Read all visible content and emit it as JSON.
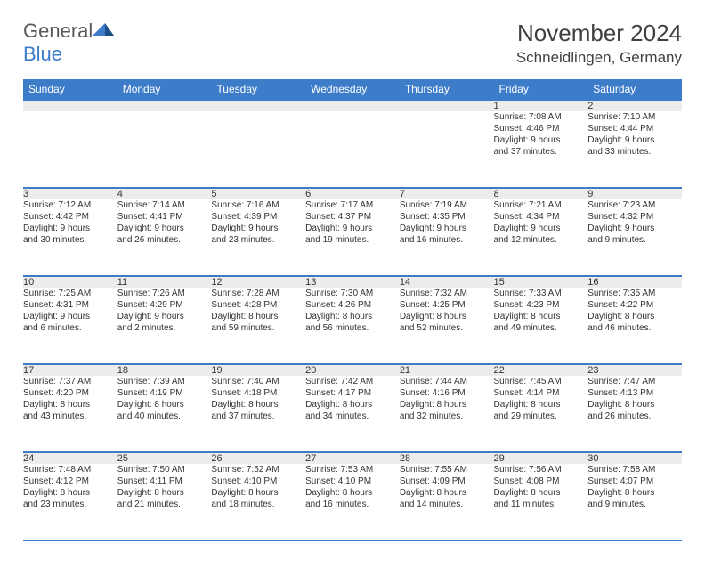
{
  "logo": {
    "text1": "General",
    "text2": "Blue"
  },
  "title": "November 2024",
  "location": "Schneidlingen, Germany",
  "colors": {
    "header_bg": "#3d7cc9",
    "header_text": "#ffffff",
    "dayrow_bg": "#ececec",
    "border": "#3d7cc9",
    "body_text": "#333333",
    "title_text": "#404040",
    "logo_gray": "#5a5a5a",
    "logo_blue": "#3d7cc9"
  },
  "fonts": {
    "title_size": 26,
    "location_size": 17,
    "dayheader_size": 12,
    "daynum_size": 11,
    "cell_size": 10
  },
  "day_headers": [
    "Sunday",
    "Monday",
    "Tuesday",
    "Wednesday",
    "Thursday",
    "Friday",
    "Saturday"
  ],
  "weeks": [
    {
      "nums": [
        "",
        "",
        "",
        "",
        "",
        "1",
        "2"
      ],
      "cells": [
        {
          "sunrise": "",
          "sunset": "",
          "daylight1": "",
          "daylight2": ""
        },
        {
          "sunrise": "",
          "sunset": "",
          "daylight1": "",
          "daylight2": ""
        },
        {
          "sunrise": "",
          "sunset": "",
          "daylight1": "",
          "daylight2": ""
        },
        {
          "sunrise": "",
          "sunset": "",
          "daylight1": "",
          "daylight2": ""
        },
        {
          "sunrise": "",
          "sunset": "",
          "daylight1": "",
          "daylight2": ""
        },
        {
          "sunrise": "Sunrise: 7:08 AM",
          "sunset": "Sunset: 4:46 PM",
          "daylight1": "Daylight: 9 hours",
          "daylight2": "and 37 minutes."
        },
        {
          "sunrise": "Sunrise: 7:10 AM",
          "sunset": "Sunset: 4:44 PM",
          "daylight1": "Daylight: 9 hours",
          "daylight2": "and 33 minutes."
        }
      ]
    },
    {
      "nums": [
        "3",
        "4",
        "5",
        "6",
        "7",
        "8",
        "9"
      ],
      "cells": [
        {
          "sunrise": "Sunrise: 7:12 AM",
          "sunset": "Sunset: 4:42 PM",
          "daylight1": "Daylight: 9 hours",
          "daylight2": "and 30 minutes."
        },
        {
          "sunrise": "Sunrise: 7:14 AM",
          "sunset": "Sunset: 4:41 PM",
          "daylight1": "Daylight: 9 hours",
          "daylight2": "and 26 minutes."
        },
        {
          "sunrise": "Sunrise: 7:16 AM",
          "sunset": "Sunset: 4:39 PM",
          "daylight1": "Daylight: 9 hours",
          "daylight2": "and 23 minutes."
        },
        {
          "sunrise": "Sunrise: 7:17 AM",
          "sunset": "Sunset: 4:37 PM",
          "daylight1": "Daylight: 9 hours",
          "daylight2": "and 19 minutes."
        },
        {
          "sunrise": "Sunrise: 7:19 AM",
          "sunset": "Sunset: 4:35 PM",
          "daylight1": "Daylight: 9 hours",
          "daylight2": "and 16 minutes."
        },
        {
          "sunrise": "Sunrise: 7:21 AM",
          "sunset": "Sunset: 4:34 PM",
          "daylight1": "Daylight: 9 hours",
          "daylight2": "and 12 minutes."
        },
        {
          "sunrise": "Sunrise: 7:23 AM",
          "sunset": "Sunset: 4:32 PM",
          "daylight1": "Daylight: 9 hours",
          "daylight2": "and 9 minutes."
        }
      ]
    },
    {
      "nums": [
        "10",
        "11",
        "12",
        "13",
        "14",
        "15",
        "16"
      ],
      "cells": [
        {
          "sunrise": "Sunrise: 7:25 AM",
          "sunset": "Sunset: 4:31 PM",
          "daylight1": "Daylight: 9 hours",
          "daylight2": "and 6 minutes."
        },
        {
          "sunrise": "Sunrise: 7:26 AM",
          "sunset": "Sunset: 4:29 PM",
          "daylight1": "Daylight: 9 hours",
          "daylight2": "and 2 minutes."
        },
        {
          "sunrise": "Sunrise: 7:28 AM",
          "sunset": "Sunset: 4:28 PM",
          "daylight1": "Daylight: 8 hours",
          "daylight2": "and 59 minutes."
        },
        {
          "sunrise": "Sunrise: 7:30 AM",
          "sunset": "Sunset: 4:26 PM",
          "daylight1": "Daylight: 8 hours",
          "daylight2": "and 56 minutes."
        },
        {
          "sunrise": "Sunrise: 7:32 AM",
          "sunset": "Sunset: 4:25 PM",
          "daylight1": "Daylight: 8 hours",
          "daylight2": "and 52 minutes."
        },
        {
          "sunrise": "Sunrise: 7:33 AM",
          "sunset": "Sunset: 4:23 PM",
          "daylight1": "Daylight: 8 hours",
          "daylight2": "and 49 minutes."
        },
        {
          "sunrise": "Sunrise: 7:35 AM",
          "sunset": "Sunset: 4:22 PM",
          "daylight1": "Daylight: 8 hours",
          "daylight2": "and 46 minutes."
        }
      ]
    },
    {
      "nums": [
        "17",
        "18",
        "19",
        "20",
        "21",
        "22",
        "23"
      ],
      "cells": [
        {
          "sunrise": "Sunrise: 7:37 AM",
          "sunset": "Sunset: 4:20 PM",
          "daylight1": "Daylight: 8 hours",
          "daylight2": "and 43 minutes."
        },
        {
          "sunrise": "Sunrise: 7:39 AM",
          "sunset": "Sunset: 4:19 PM",
          "daylight1": "Daylight: 8 hours",
          "daylight2": "and 40 minutes."
        },
        {
          "sunrise": "Sunrise: 7:40 AM",
          "sunset": "Sunset: 4:18 PM",
          "daylight1": "Daylight: 8 hours",
          "daylight2": "and 37 minutes."
        },
        {
          "sunrise": "Sunrise: 7:42 AM",
          "sunset": "Sunset: 4:17 PM",
          "daylight1": "Daylight: 8 hours",
          "daylight2": "and 34 minutes."
        },
        {
          "sunrise": "Sunrise: 7:44 AM",
          "sunset": "Sunset: 4:16 PM",
          "daylight1": "Daylight: 8 hours",
          "daylight2": "and 32 minutes."
        },
        {
          "sunrise": "Sunrise: 7:45 AM",
          "sunset": "Sunset: 4:14 PM",
          "daylight1": "Daylight: 8 hours",
          "daylight2": "and 29 minutes."
        },
        {
          "sunrise": "Sunrise: 7:47 AM",
          "sunset": "Sunset: 4:13 PM",
          "daylight1": "Daylight: 8 hours",
          "daylight2": "and 26 minutes."
        }
      ]
    },
    {
      "nums": [
        "24",
        "25",
        "26",
        "27",
        "28",
        "29",
        "30"
      ],
      "cells": [
        {
          "sunrise": "Sunrise: 7:48 AM",
          "sunset": "Sunset: 4:12 PM",
          "daylight1": "Daylight: 8 hours",
          "daylight2": "and 23 minutes."
        },
        {
          "sunrise": "Sunrise: 7:50 AM",
          "sunset": "Sunset: 4:11 PM",
          "daylight1": "Daylight: 8 hours",
          "daylight2": "and 21 minutes."
        },
        {
          "sunrise": "Sunrise: 7:52 AM",
          "sunset": "Sunset: 4:10 PM",
          "daylight1": "Daylight: 8 hours",
          "daylight2": "and 18 minutes."
        },
        {
          "sunrise": "Sunrise: 7:53 AM",
          "sunset": "Sunset: 4:10 PM",
          "daylight1": "Daylight: 8 hours",
          "daylight2": "and 16 minutes."
        },
        {
          "sunrise": "Sunrise: 7:55 AM",
          "sunset": "Sunset: 4:09 PM",
          "daylight1": "Daylight: 8 hours",
          "daylight2": "and 14 minutes."
        },
        {
          "sunrise": "Sunrise: 7:56 AM",
          "sunset": "Sunset: 4:08 PM",
          "daylight1": "Daylight: 8 hours",
          "daylight2": "and 11 minutes."
        },
        {
          "sunrise": "Sunrise: 7:58 AM",
          "sunset": "Sunset: 4:07 PM",
          "daylight1": "Daylight: 8 hours",
          "daylight2": "and 9 minutes."
        }
      ]
    }
  ]
}
